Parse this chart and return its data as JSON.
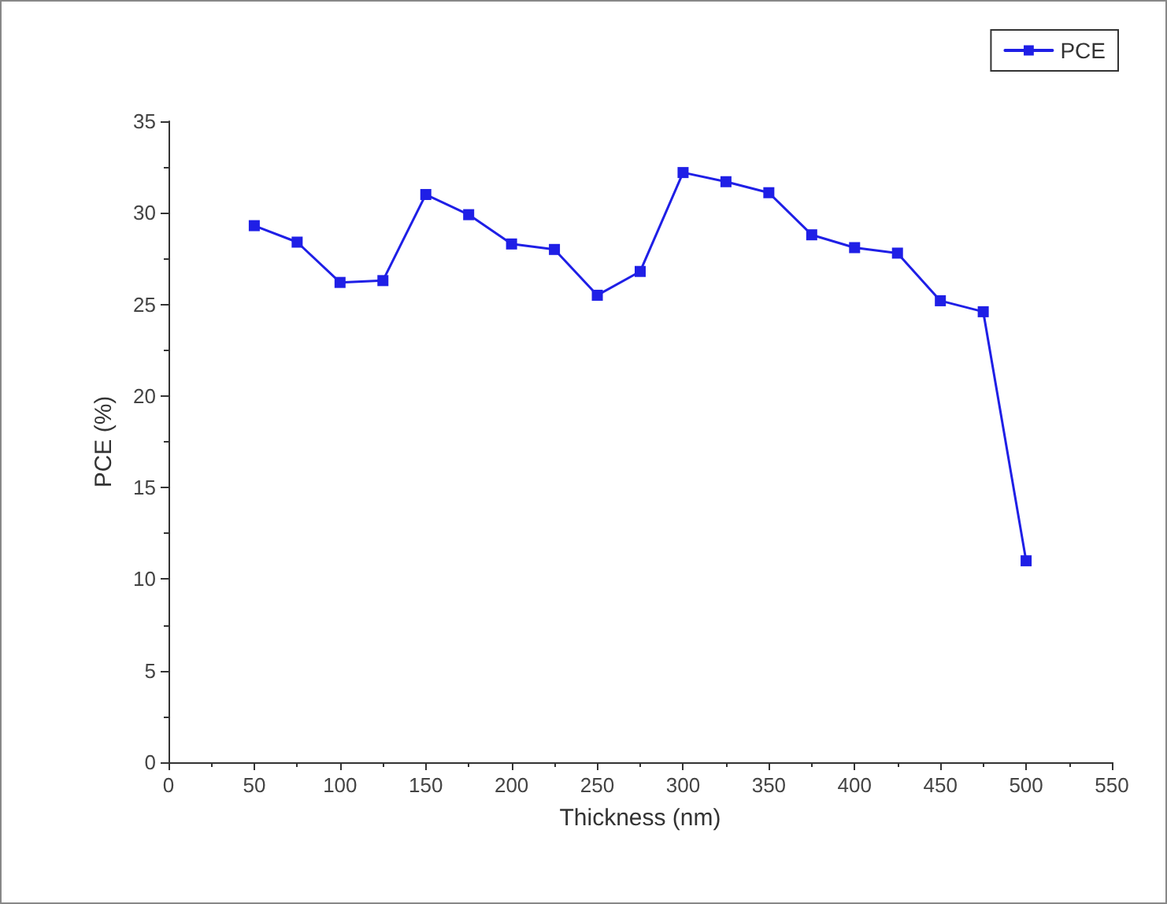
{
  "chart_data": {
    "type": "line",
    "xlabel": "Thickness (nm)",
    "ylabel": "PCE (%)",
    "x": [
      50,
      75,
      100,
      125,
      150,
      175,
      200,
      225,
      250,
      275,
      300,
      325,
      350,
      375,
      400,
      425,
      450,
      475,
      500
    ],
    "series": [
      {
        "name": "PCE",
        "color": "#1f1fe6",
        "values": [
          29.3,
          28.4,
          26.2,
          26.3,
          31.0,
          29.9,
          28.3,
          28.0,
          25.5,
          26.8,
          32.2,
          31.7,
          31.1,
          28.8,
          28.1,
          27.8,
          25.2,
          24.6,
          11.0
        ]
      }
    ],
    "xlim": [
      0,
      550
    ],
    "xticks": [
      0,
      50,
      100,
      150,
      200,
      250,
      300,
      350,
      400,
      450,
      500,
      550
    ],
    "ylim": [
      0,
      35
    ],
    "yticks": [
      0,
      5,
      10,
      15,
      20,
      25,
      30,
      35
    ],
    "grid": false,
    "legend": "top right",
    "marker": "square",
    "line_style": "solid"
  }
}
